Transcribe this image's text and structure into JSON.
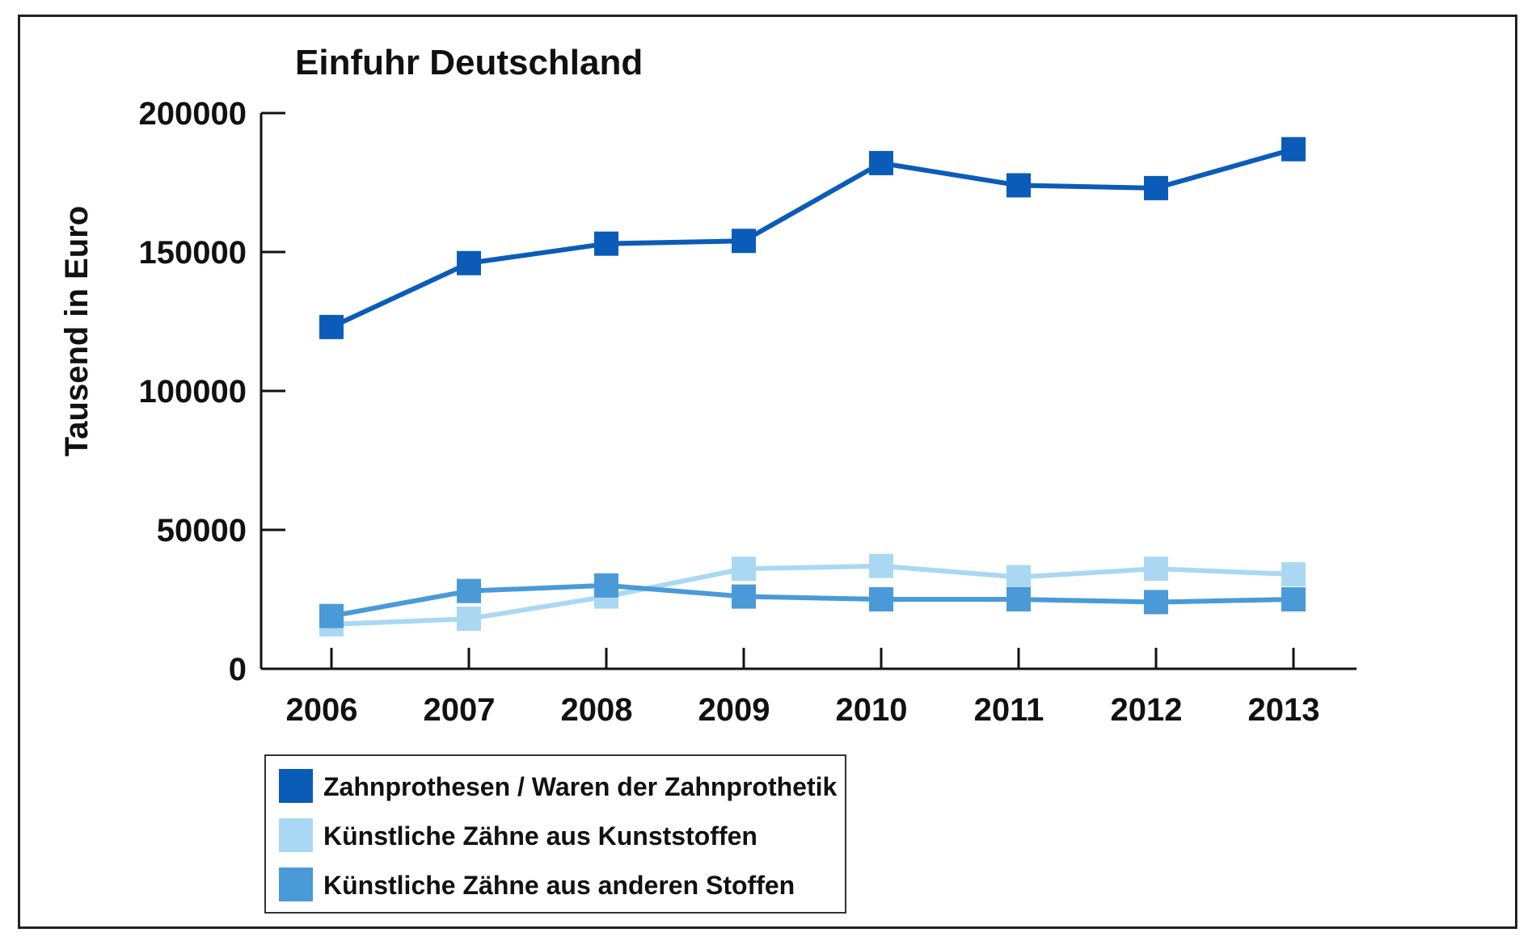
{
  "chart_data": {
    "type": "line",
    "title": "Einfuhr Deutschland",
    "xlabel": "",
    "ylabel": "Tausend in Euro",
    "x": [
      "2006",
      "2007",
      "2008",
      "2009",
      "2010",
      "2011",
      "2012",
      "2013"
    ],
    "yticks": [
      "0",
      "50000",
      "100000",
      "150000",
      "200000"
    ],
    "ylim": [
      0,
      200000
    ],
    "grid": false,
    "legend_position": "bottom-left",
    "series": [
      {
        "name": "Zahnprothesen / Waren der Zahnprothetik",
        "color": "#0a5cb8",
        "values": [
          123000,
          146000,
          153000,
          154000,
          182000,
          174000,
          173000,
          187000
        ]
      },
      {
        "name": "Künstliche Zähne aus Kunststoffen",
        "color": "#aad8f2",
        "values": [
          16000,
          18000,
          26000,
          36000,
          37000,
          33000,
          36000,
          34000
        ]
      },
      {
        "name": "Künstliche Zähne aus anderen Stoffen",
        "color": "#4a9ad8",
        "values": [
          19000,
          28000,
          30000,
          26000,
          25000,
          25000,
          24000,
          25000
        ]
      }
    ]
  }
}
